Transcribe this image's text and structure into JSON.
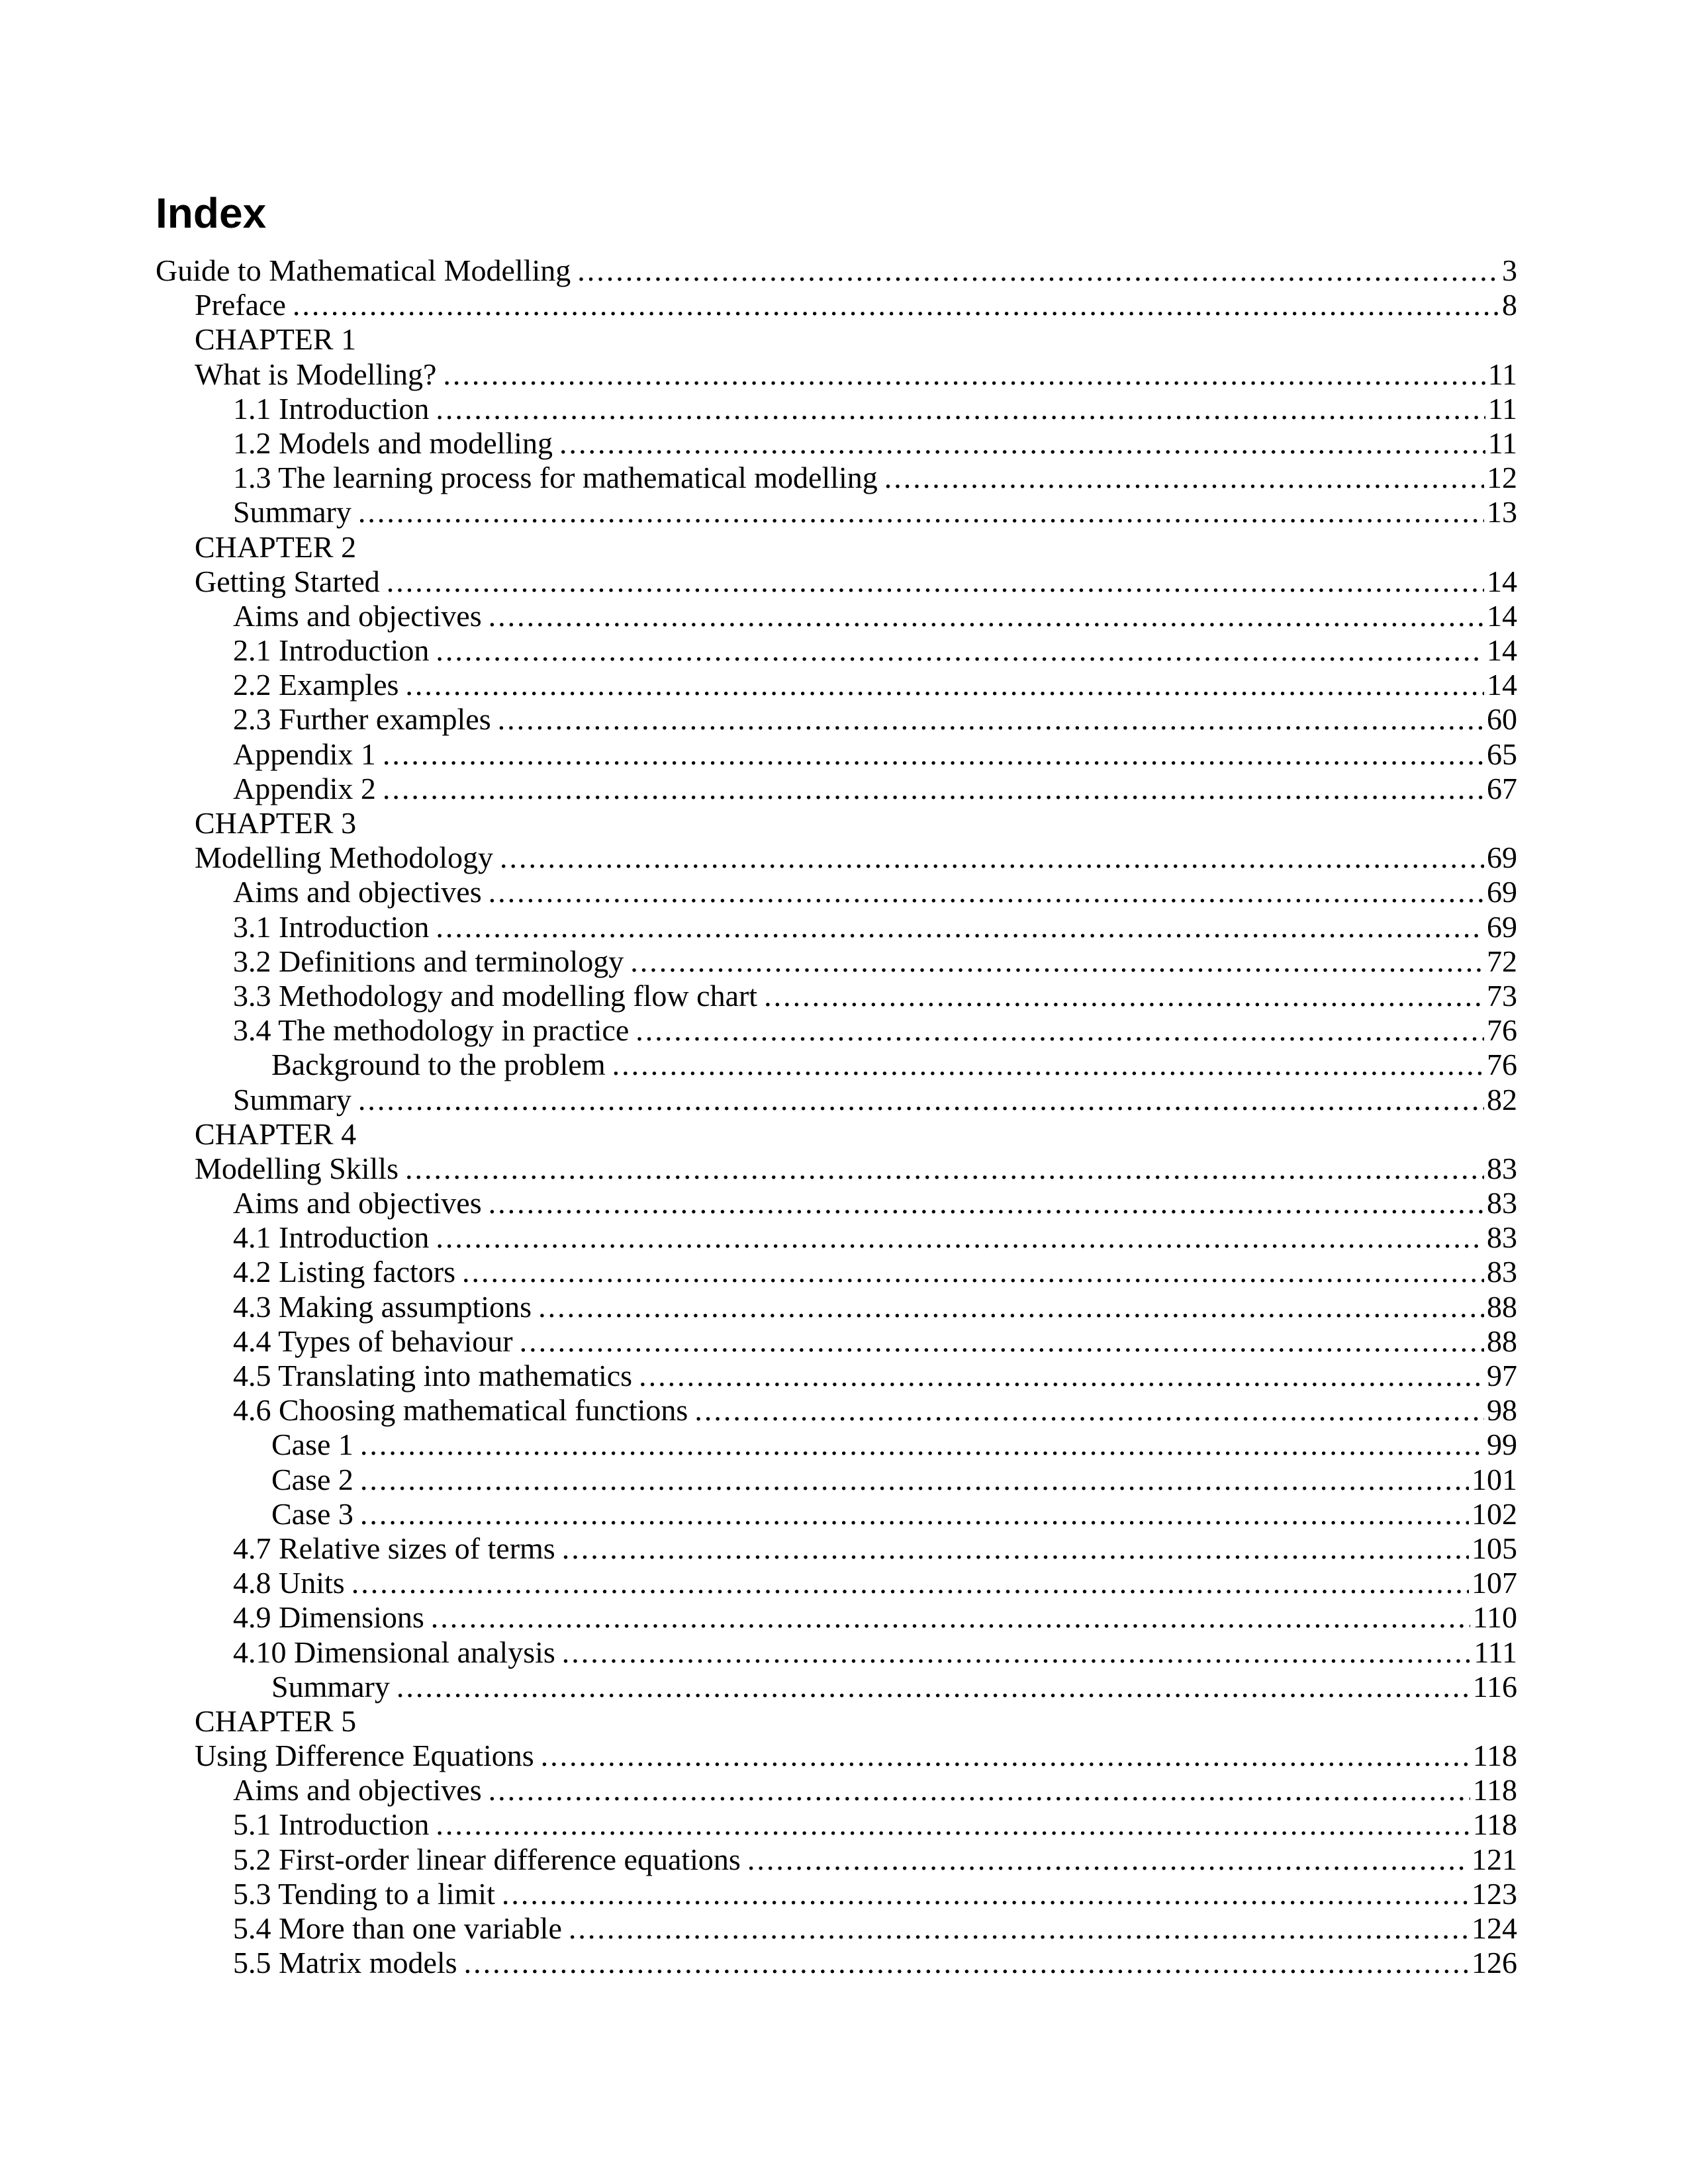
{
  "title": "Index",
  "entries": [
    {
      "label": "Guide to Mathematical Modelling",
      "page": "3",
      "level": 0
    },
    {
      "label": "Preface",
      "page": "8",
      "level": 1
    },
    {
      "label": "CHAPTER 1",
      "page": "",
      "level": 1
    },
    {
      "label": "What is Modelling?",
      "page": "11",
      "level": 1
    },
    {
      "label": "1.1 Introduction",
      "page": "11",
      "level": 2
    },
    {
      "label": "1.2 Models and modelling",
      "page": "11",
      "level": 2
    },
    {
      "label": "1.3 The learning process for mathematical modelling",
      "page": "12",
      "level": 2
    },
    {
      "label": "Summary",
      "page": "13",
      "level": 2
    },
    {
      "label": "CHAPTER 2",
      "page": "",
      "level": 1
    },
    {
      "label": "Getting Started",
      "page": "14",
      "level": 1
    },
    {
      "label": "Aims and objectives",
      "page": "14",
      "level": 2
    },
    {
      "label": "2.1 Introduction",
      "page": "14",
      "level": 2
    },
    {
      "label": "2.2 Examples",
      "page": "14",
      "level": 2
    },
    {
      "label": "2.3 Further examples",
      "page": "60",
      "level": 2
    },
    {
      "label": "Appendix 1",
      "page": "65",
      "level": 2
    },
    {
      "label": "Appendix 2",
      "page": "67",
      "level": 2
    },
    {
      "label": "CHAPTER 3",
      "page": "",
      "level": 1
    },
    {
      "label": "Modelling Methodology",
      "page": "69",
      "level": 1
    },
    {
      "label": "Aims and objectives",
      "page": "69",
      "level": 2
    },
    {
      "label": "3.1 Introduction",
      "page": "69",
      "level": 2
    },
    {
      "label": "3.2 Definitions and terminology",
      "page": "72",
      "level": 2
    },
    {
      "label": "3.3 Methodology and modelling flow chart",
      "page": "73",
      "level": 2
    },
    {
      "label": "3.4 The methodology in practice",
      "page": "76",
      "level": 2
    },
    {
      "label": "Background to the problem",
      "page": "76",
      "level": 3
    },
    {
      "label": "Summary",
      "page": "82",
      "level": 2
    },
    {
      "label": "CHAPTER 4",
      "page": "",
      "level": 1
    },
    {
      "label": "Modelling Skills",
      "page": "83",
      "level": 1
    },
    {
      "label": "Aims and objectives",
      "page": "83",
      "level": 2
    },
    {
      "label": "4.1 Introduction",
      "page": "83",
      "level": 2
    },
    {
      "label": "4.2 Listing factors",
      "page": "83",
      "level": 2
    },
    {
      "label": "4.3 Making assumptions",
      "page": "88",
      "level": 2
    },
    {
      "label": "4.4 Types of behaviour",
      "page": "88",
      "level": 2
    },
    {
      "label": "4.5 Translating into mathematics",
      "page": "97",
      "level": 2
    },
    {
      "label": "4.6 Choosing mathematical functions",
      "page": "98",
      "level": 2
    },
    {
      "label": "Case 1",
      "page": "99",
      "level": 3
    },
    {
      "label": "Case 2",
      "page": "101",
      "level": 3
    },
    {
      "label": "Case 3",
      "page": "102",
      "level": 3
    },
    {
      "label": "4.7 Relative sizes of terms",
      "page": "105",
      "level": 2
    },
    {
      "label": "4.8 Units",
      "page": "107",
      "level": 2
    },
    {
      "label": "4.9 Dimensions",
      "page": "110",
      "level": 2
    },
    {
      "label": "4.10 Dimensional analysis",
      "page": "111",
      "level": 2
    },
    {
      "label": "Summary",
      "page": "116",
      "level": 3
    },
    {
      "label": "CHAPTER 5",
      "page": "",
      "level": 1
    },
    {
      "label": "Using Difference Equations",
      "page": "118",
      "level": 1
    },
    {
      "label": "Aims and objectives",
      "page": "118",
      "level": 2
    },
    {
      "label": "5.1 Introduction",
      "page": "118",
      "level": 2
    },
    {
      "label": "5.2 First-order linear difference equations",
      "page": "121",
      "level": 2
    },
    {
      "label": "5.3 Tending to a limit",
      "page": "123",
      "level": 2
    },
    {
      "label": "5.4 More than one variable",
      "page": "124",
      "level": 2
    },
    {
      "label": "5.5 Matrix models",
      "page": "126",
      "level": 2
    }
  ]
}
